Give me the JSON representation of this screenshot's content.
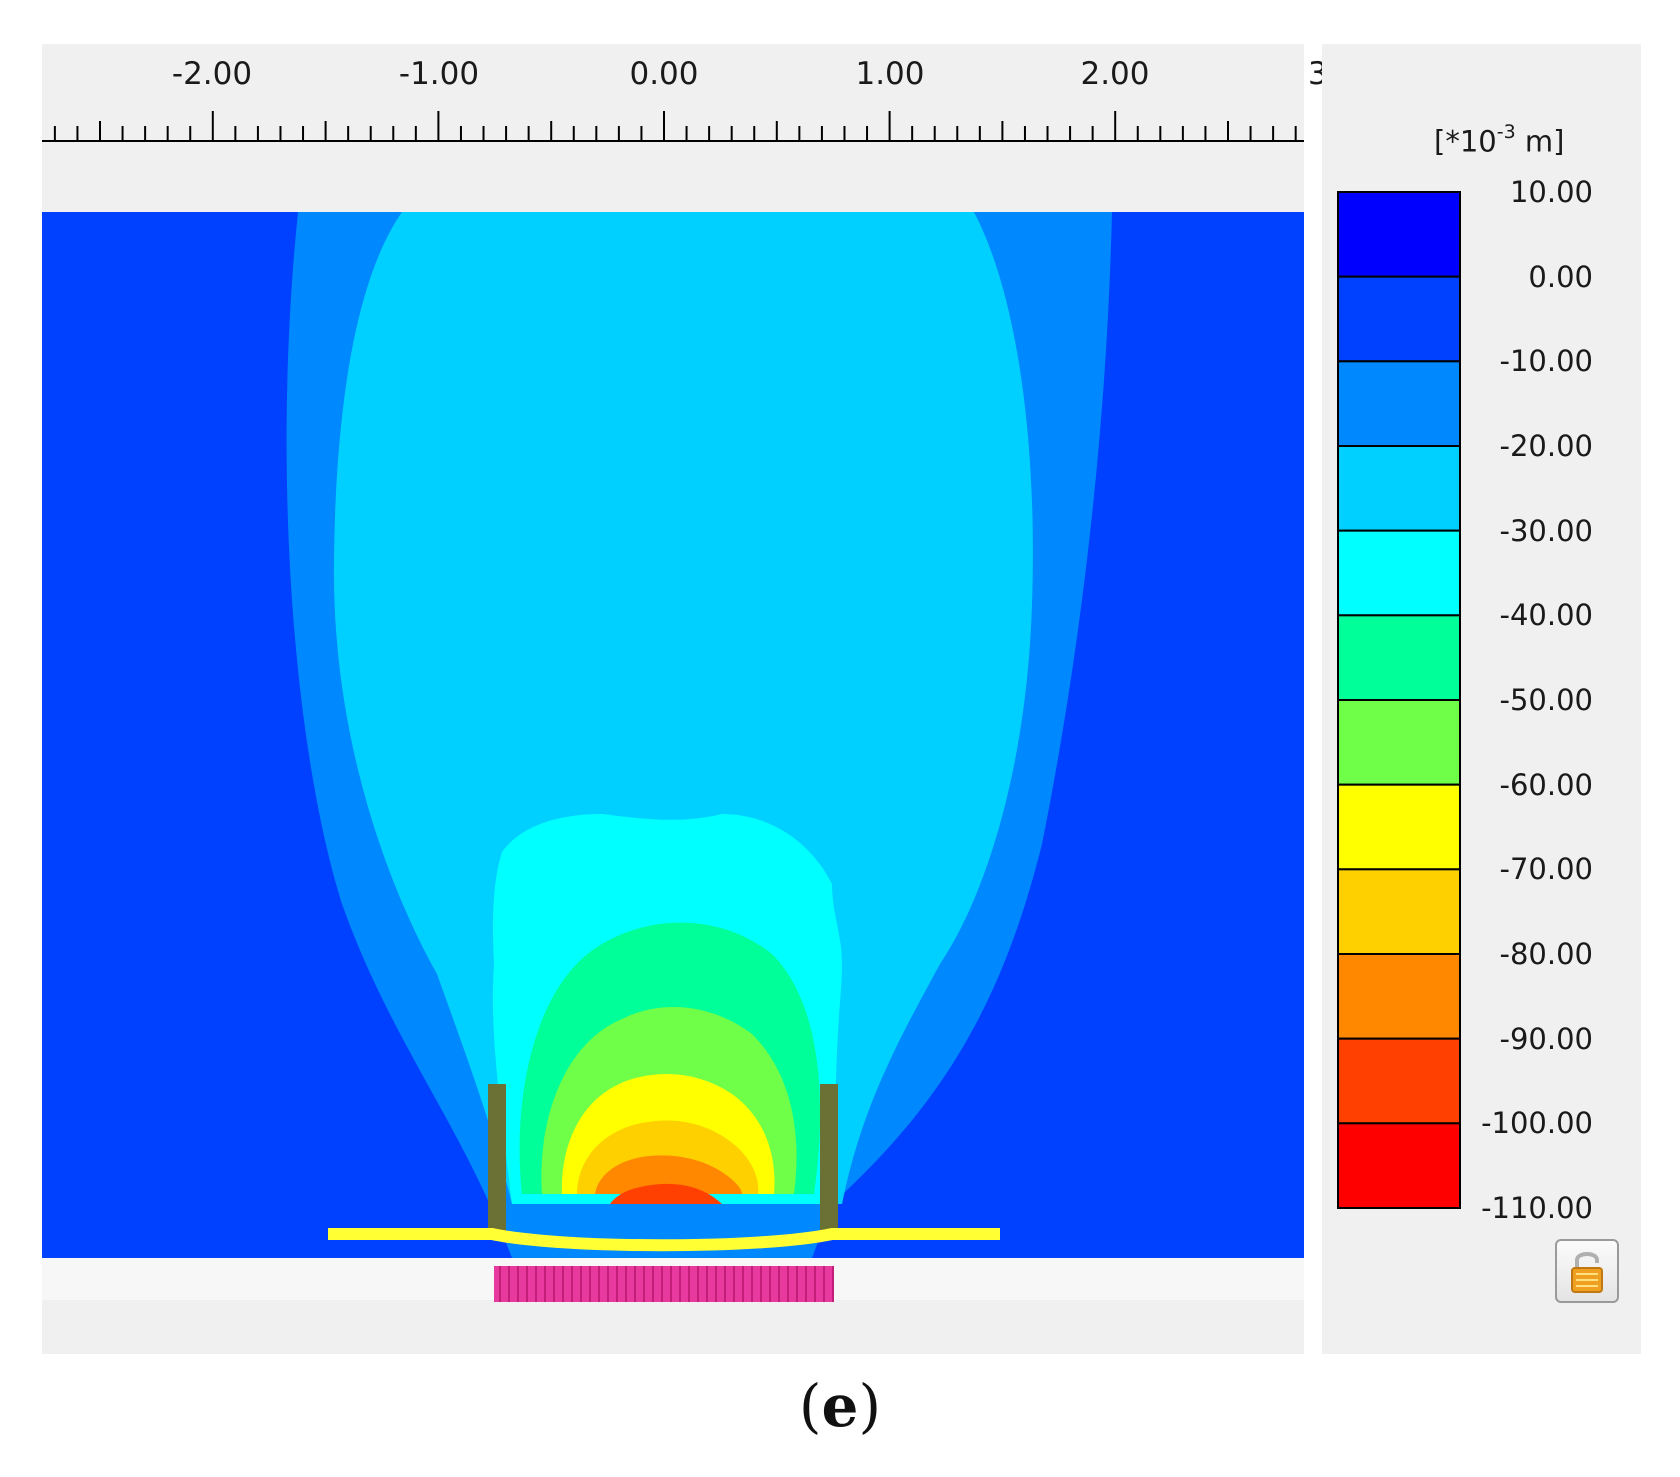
{
  "ruler": {
    "labels": [
      "-2.00",
      "-1.00",
      "0.00",
      "1.00",
      "2.00"
    ],
    "clipped_label": "3"
  },
  "legend": {
    "unit_prefix": "[*10",
    "unit_exponent": "-3",
    "unit_suffix": " m]",
    "levels": [
      "10.00",
      "0.00",
      "-10.00",
      "-20.00",
      "-30.00",
      "-40.00",
      "-50.00",
      "-60.00",
      "-70.00",
      "-80.00",
      "-90.00",
      "-100.00",
      "-110.00"
    ],
    "colors": [
      "#0000ff",
      "#0040ff",
      "#0088ff",
      "#00d0ff",
      "#00ffff",
      "#00ff98",
      "#70ff48",
      "#ffff00",
      "#ffd000",
      "#ff8800",
      "#ff4000",
      "#ff0000"
    ]
  },
  "plot": {
    "background_color": "#0040ff",
    "wall_color": "#6b7034",
    "beam_color": "#ffff33",
    "base_color": "#e8399e",
    "icons": [
      "lock-icon"
    ]
  },
  "caption": {
    "open": "(",
    "letter": "e",
    "close": ")"
  }
}
